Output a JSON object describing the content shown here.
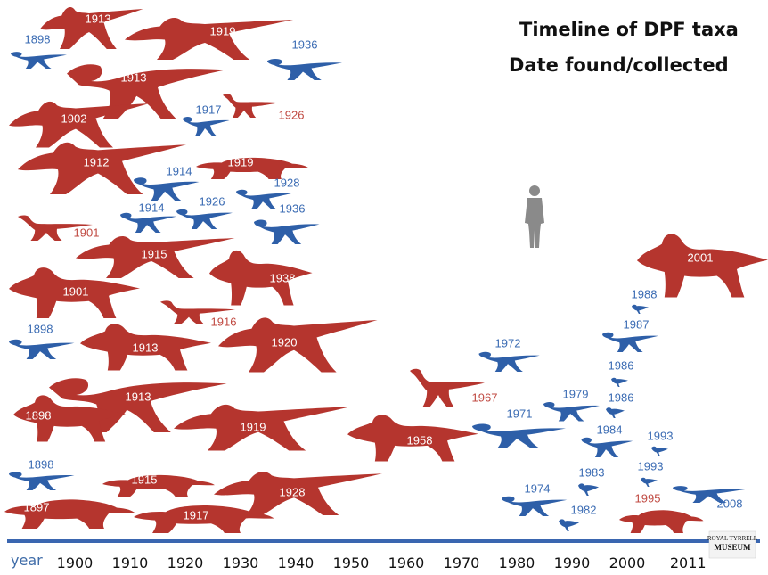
{
  "chart_data": {
    "type": "scatter",
    "title_lines": [
      "Timeline of DPF taxa",
      "Date found/collected"
    ],
    "x_axis_label": "year",
    "x_ticks": [
      1900,
      1910,
      1920,
      1930,
      1940,
      1950,
      1960,
      1970,
      1980,
      1990,
      2000,
      2011
    ],
    "legend_note": "",
    "colors": {
      "red": "#b5352e",
      "blue": "#2e5fa8",
      "axis": "#3a66b0",
      "human": "#8a8a8a"
    },
    "taxa": [
      {
        "year": 1913,
        "color": "red",
        "form": "hadrosaur",
        "label_pos": "inside"
      },
      {
        "year": 1919,
        "color": "red",
        "form": "hadrosaur",
        "label_pos": "inside"
      },
      {
        "year": 1898,
        "color": "blue",
        "form": "theropod_small",
        "label_pos": "outside"
      },
      {
        "year": 1936,
        "color": "blue",
        "form": "theropod_small",
        "label_pos": "outside"
      },
      {
        "year": 1913,
        "color": "red",
        "form": "tyrannosaur",
        "label_pos": "inside"
      },
      {
        "year": 1917,
        "color": "blue",
        "form": "theropod_small",
        "label_pos": "outside"
      },
      {
        "year": 1926,
        "color": "red",
        "form": "ornithopod_small",
        "label_pos": "outside"
      },
      {
        "year": 1902,
        "color": "red",
        "form": "hadrosaur",
        "label_pos": "inside"
      },
      {
        "year": 1912,
        "color": "red",
        "form": "hadrosaur",
        "label_pos": "inside"
      },
      {
        "year": 1919,
        "color": "red",
        "form": "ankylosaur",
        "label_pos": "inside"
      },
      {
        "year": 1914,
        "color": "blue",
        "form": "theropod_small",
        "label_pos": "outside"
      },
      {
        "year": 1928,
        "color": "blue",
        "form": "theropod_small",
        "label_pos": "outside"
      },
      {
        "year": 1914,
        "color": "blue",
        "form": "theropod_small",
        "label_pos": "outside"
      },
      {
        "year": 1926,
        "color": "blue",
        "form": "theropod_small",
        "label_pos": "outside"
      },
      {
        "year": 1936,
        "color": "blue",
        "form": "theropod_small",
        "label_pos": "outside"
      },
      {
        "year": 1901,
        "color": "red",
        "form": "ornithopod_small",
        "label_pos": "outside"
      },
      {
        "year": 1915,
        "color": "red",
        "form": "hadrosaur",
        "label_pos": "inside"
      },
      {
        "year": 1938,
        "color": "red",
        "form": "ceratopsian",
        "label_pos": "inside"
      },
      {
        "year": 1901,
        "color": "red",
        "form": "ceratopsian",
        "label_pos": "inside"
      },
      {
        "year": 1916,
        "color": "red",
        "form": "ornithopod_small",
        "label_pos": "outside"
      },
      {
        "year": 1898,
        "color": "blue",
        "form": "theropod_small",
        "label_pos": "outside"
      },
      {
        "year": 1913,
        "color": "red",
        "form": "ceratopsian",
        "label_pos": "inside"
      },
      {
        "year": 1920,
        "color": "red",
        "form": "hadrosaur",
        "label_pos": "inside"
      },
      {
        "year": 1913,
        "color": "red",
        "form": "tyrannosaur",
        "label_pos": "inside"
      },
      {
        "year": 1898,
        "color": "red",
        "form": "ceratopsian",
        "label_pos": "inside"
      },
      {
        "year": 1919,
        "color": "red",
        "form": "hadrosaur",
        "label_pos": "inside"
      },
      {
        "year": 1898,
        "color": "blue",
        "form": "theropod_small",
        "label_pos": "outside"
      },
      {
        "year": 1915,
        "color": "red",
        "form": "ankylosaur",
        "label_pos": "inside"
      },
      {
        "year": 1928,
        "color": "red",
        "form": "hadrosaur",
        "label_pos": "inside"
      },
      {
        "year": 1897,
        "color": "red",
        "form": "ankylosaur",
        "label_pos": "inside"
      },
      {
        "year": 1917,
        "color": "red",
        "form": "ankylosaur",
        "label_pos": "inside"
      },
      {
        "year": 1967,
        "color": "red",
        "form": "ornithopod_small",
        "label_pos": "outside"
      },
      {
        "year": 1958,
        "color": "red",
        "form": "ceratopsian",
        "label_pos": "inside"
      },
      {
        "year": 1972,
        "color": "blue",
        "form": "theropod_small",
        "label_pos": "outside"
      },
      {
        "year": 1971,
        "color": "blue",
        "form": "theropod_small",
        "label_pos": "outside"
      },
      {
        "year": 1979,
        "color": "blue",
        "form": "theropod_small",
        "label_pos": "outside"
      },
      {
        "year": 1974,
        "color": "blue",
        "form": "theropod_small",
        "label_pos": "outside"
      },
      {
        "year": 1982,
        "color": "blue",
        "form": "bird",
        "label_pos": "outside"
      },
      {
        "year": 1983,
        "color": "blue",
        "form": "bird",
        "label_pos": "outside"
      },
      {
        "year": 1984,
        "color": "blue",
        "form": "theropod_small",
        "label_pos": "outside"
      },
      {
        "year": 1986,
        "color": "blue",
        "form": "bird",
        "label_pos": "outside"
      },
      {
        "year": 1986,
        "color": "blue",
        "form": "bird",
        "label_pos": "outside"
      },
      {
        "year": 1987,
        "color": "blue",
        "form": "theropod_small",
        "label_pos": "outside"
      },
      {
        "year": 1988,
        "color": "blue",
        "form": "bird",
        "label_pos": "outside"
      },
      {
        "year": 1993,
        "color": "blue",
        "form": "bird",
        "label_pos": "outside"
      },
      {
        "year": 1993,
        "color": "blue",
        "form": "bird",
        "label_pos": "outside"
      },
      {
        "year": 1995,
        "color": "red",
        "form": "ankylosaur",
        "label_pos": "outside"
      },
      {
        "year": 2001,
        "color": "red",
        "form": "ceratopsian",
        "label_pos": "inside"
      },
      {
        "year": 2008,
        "color": "blue",
        "form": "theropod_small",
        "label_pos": "outside"
      }
    ]
  },
  "logo": {
    "line1": "ROYAL TYRRELL",
    "line2": "MUSEUM"
  }
}
